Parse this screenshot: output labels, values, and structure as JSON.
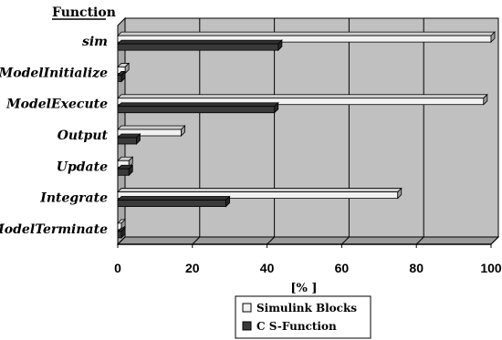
{
  "chart_data": {
    "type": "bar",
    "orientation": "horizontal",
    "style": "3d",
    "title": "Function",
    "xlabel": "[% ]",
    "xlim": [
      0,
      100
    ],
    "xticks": [
      0,
      20,
      40,
      60,
      80,
      100
    ],
    "grid": true,
    "legend_position": "bottom-center",
    "categories": [
      "sim",
      "ModelInitialize",
      "ModelExecute",
      "Output",
      "Update",
      "Integrate",
      "ModelTerminate"
    ],
    "series": [
      {
        "name": "Simulink Blocks",
        "color": "#f2f2f2",
        "values": [
          100,
          2,
          98,
          17,
          3,
          75,
          1
        ]
      },
      {
        "name": "C S-Function",
        "color": "#3a3a3a",
        "values": [
          43,
          1,
          42,
          5,
          3,
          29,
          1
        ]
      }
    ]
  },
  "colors": {
    "plot_background": "#c0c0c0",
    "plot_side_wall": "#a8a8a8",
    "gridline": "#000000"
  }
}
